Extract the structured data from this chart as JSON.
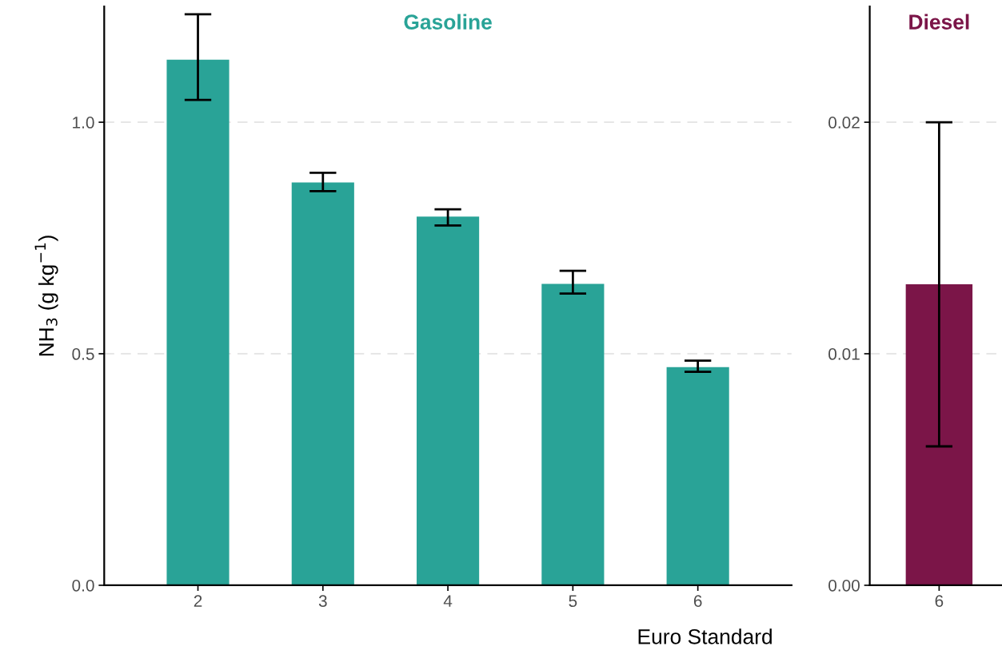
{
  "chart_data": [
    {
      "type": "bar",
      "title": "Gasoline",
      "xlabel": "Euro Standard",
      "ylabel": "NH$_{3}$ (g kg$^{−1}$)",
      "categories": [
        "2",
        "3",
        "4",
        "5",
        "6"
      ],
      "series": [
        {
          "color": "#29a397",
          "values": [
            1.135,
            0.87,
            0.796,
            0.651,
            0.471
          ],
          "errors": [
            [
              1.048,
              1.233
            ],
            [
              0.851,
              0.891
            ],
            [
              0.777,
              0.812
            ],
            [
              0.63,
              0.679
            ],
            [
              0.461,
              0.485
            ]
          ]
        }
      ],
      "ylim": [
        0,
        1.25
      ],
      "yticks": [
        {
          "value": 0,
          "label": "0.0"
        },
        {
          "value": 0.5,
          "label": "0.5"
        },
        {
          "value": 1.0,
          "label": "1.0"
        }
      ],
      "grid": "y"
    },
    {
      "type": "bar",
      "title": "Diesel",
      "categories": [
        "6"
      ],
      "series": [
        {
          "color": "#7b1548",
          "values": [
            0.013
          ],
          "errors": [
            [
              0.006,
              0.02
            ]
          ]
        }
      ],
      "ylim": [
        0,
        0.025
      ],
      "yticks": [
        {
          "value": 0,
          "label": "0.00"
        },
        {
          "value": 0.01,
          "label": "0.01"
        },
        {
          "value": 0.02,
          "label": "0.02"
        }
      ],
      "grid": "y"
    }
  ]
}
